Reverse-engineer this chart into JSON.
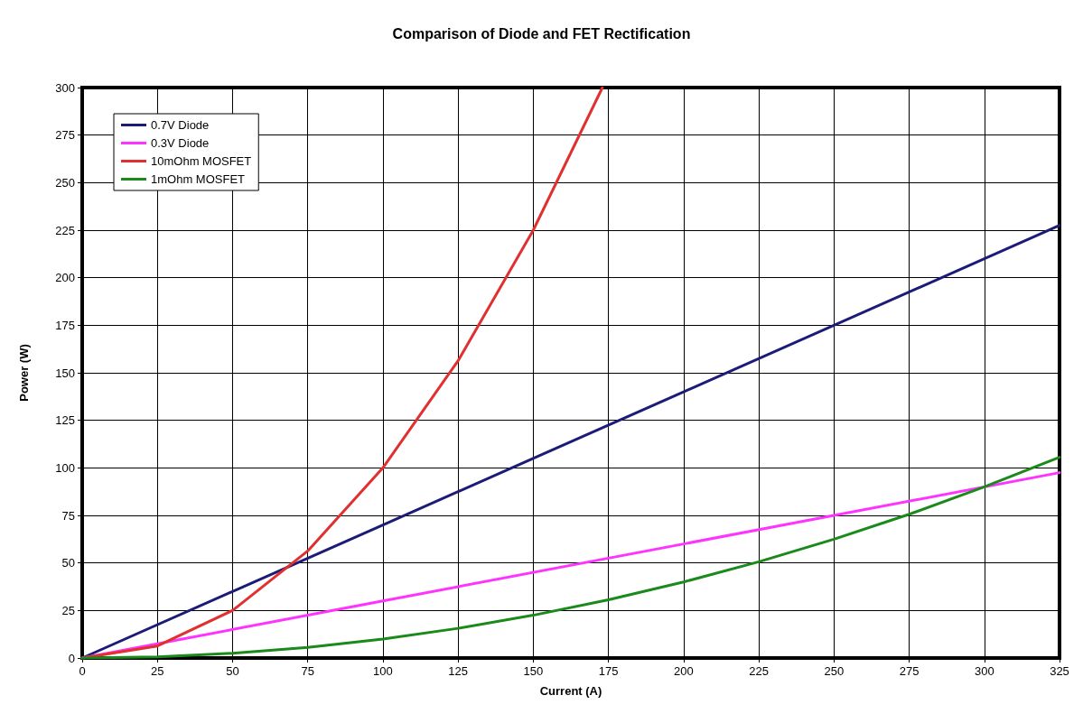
{
  "chart_data": {
    "type": "line",
    "title": "Comparison of Diode and FET Rectification",
    "xlabel": "Current (A)",
    "ylabel": "Power (W)",
    "xlim": [
      0,
      325
    ],
    "xticks": [
      0,
      25,
      50,
      75,
      100,
      125,
      150,
      175,
      200,
      225,
      250,
      275,
      300,
      325
    ],
    "ylim": [
      0,
      300
    ],
    "yticks": [
      0,
      25,
      50,
      75,
      100,
      125,
      150,
      175,
      200,
      225,
      250,
      275,
      300
    ],
    "grid": true,
    "legend": "top left",
    "marker": "none",
    "line_style": "solid",
    "series": [
      {
        "name": "0.7V Diode",
        "color": "#1c1c78",
        "x": [
          0,
          100,
          200,
          325
        ],
        "values": [
          0,
          70,
          140,
          227.5
        ]
      },
      {
        "name": "0.3V Diode",
        "color": "#ff33ff",
        "x": [
          0,
          100,
          200,
          325
        ],
        "values": [
          0,
          30,
          60,
          97.5
        ]
      },
      {
        "name": "10mOhm MOSFET",
        "color": "#e03030",
        "x": [
          0,
          25,
          50,
          75,
          100,
          125,
          150,
          173
        ],
        "values": [
          0,
          6.3,
          25,
          56.3,
          100,
          156.3,
          225,
          300
        ]
      },
      {
        "name": "1mOhm MOSFET",
        "color": "#1a8a1a",
        "x": [
          0,
          25,
          50,
          75,
          100,
          125,
          150,
          175,
          200,
          225,
          250,
          275,
          300,
          325
        ],
        "values": [
          0,
          0.6,
          2.5,
          5.6,
          10,
          15.6,
          22.5,
          30.6,
          40,
          50.6,
          62.5,
          75.6,
          90,
          105.6
        ]
      }
    ]
  }
}
